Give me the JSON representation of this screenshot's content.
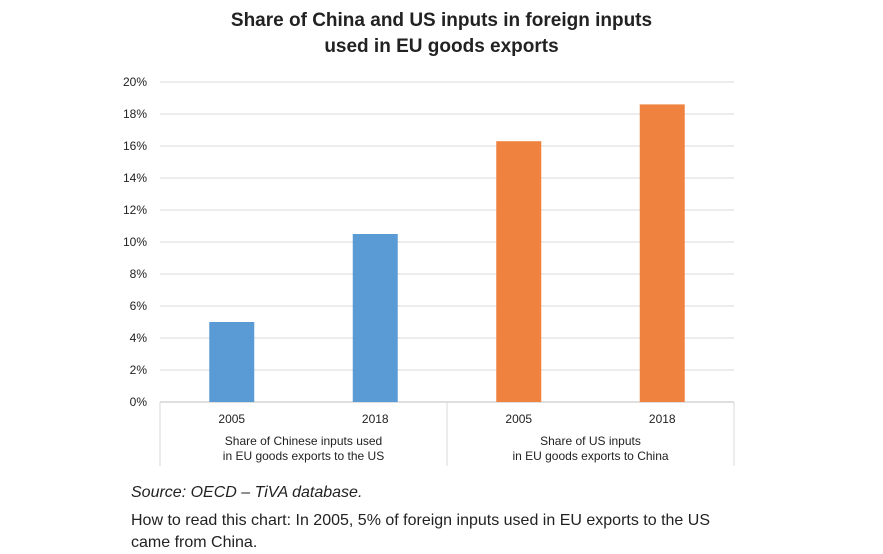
{
  "chart_data": {
    "type": "bar",
    "title": "Share of China and US inputs in foreign inputs used in EU goods exports",
    "title_lines": [
      "Share of China and US inputs in foreign inputs",
      "used in EU goods exports"
    ],
    "ylim": [
      0,
      20
    ],
    "yticks": [
      "0%",
      "2%",
      "4%",
      "6%",
      "8%",
      "10%",
      "12%",
      "14%",
      "16%",
      "18%",
      "20%"
    ],
    "grid": true,
    "groups": [
      {
        "label_lines": [
          "Share of Chinese inputs used",
          "in EU goods exports to the US"
        ],
        "color": "#5B9BD5",
        "categories": [
          "2005",
          "2018"
        ],
        "values": [
          5.0,
          10.5
        ]
      },
      {
        "label_lines": [
          "Share of US inputs",
          "in EU goods exports to China"
        ],
        "color": "#F08240",
        "categories": [
          "2005",
          "2018"
        ],
        "values": [
          16.3,
          18.6
        ]
      }
    ]
  },
  "notes": {
    "source": "Source: OECD – TiVA database.",
    "how_to_read": "How to read this chart: In 2005, 5% of foreign inputs used in EU exports to the US came from China."
  }
}
